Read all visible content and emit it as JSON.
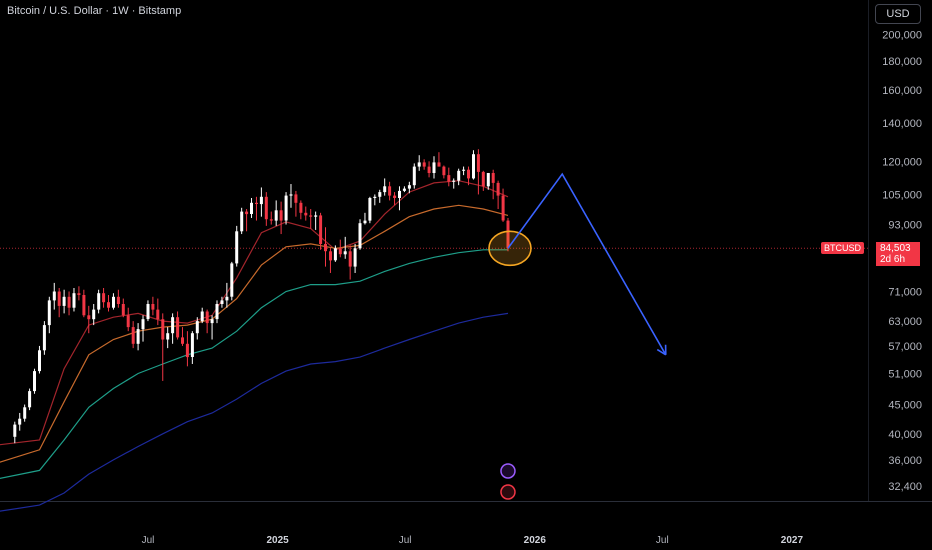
{
  "header": {
    "title": "Bitcoin / U.S. Dollar · 1W · Bitstamp",
    "currency_button": "USD"
  },
  "price_tag": {
    "symbol": "BTCUSD",
    "price": "84,503",
    "countdown": "2d 6h"
  },
  "colors": {
    "up": "#ffffff",
    "down": "#f23645",
    "ma_red": "#a3252c",
    "ma_orange": "#c76a2c",
    "ma_teal": "#1e9e89",
    "ma_navy": "#1d2a9c",
    "arrow": "#3a63ff",
    "highlight": "#f5a623"
  },
  "chart_data": {
    "type": "candlestick",
    "scale": "log",
    "y_ticks": [
      200000,
      180000,
      160000,
      140000,
      120000,
      105000,
      93000,
      71000,
      63000,
      57000,
      51000,
      45000,
      40000,
      36000,
      32400
    ],
    "y_tick_labels": [
      "200,000",
      "180,000",
      "160,000",
      "140,000",
      "120,000",
      "105,000",
      "93,000",
      "71,000",
      "63,000",
      "57,000",
      "51,000",
      "45,000",
      "40,000",
      "36,000",
      "32,400"
    ],
    "x_ticks": [
      {
        "label": "Jul",
        "date": "2024-07-01",
        "bold": false
      },
      {
        "label": "2025",
        "date": "2025-01-01",
        "bold": true
      },
      {
        "label": "Jul",
        "date": "2025-07-01",
        "bold": false
      },
      {
        "label": "2026",
        "date": "2026-01-01",
        "bold": true
      },
      {
        "label": "Jul",
        "date": "2026-07-01",
        "bold": false
      },
      {
        "label": "2027",
        "date": "2027-01-01",
        "bold": true
      }
    ],
    "x_range": [
      "2023-12-04",
      "2027-04-19"
    ],
    "y_range": [
      30500,
      230000
    ],
    "candles": [
      [
        39500,
        42000,
        38500,
        41500
      ],
      [
        41500,
        43500,
        40500,
        42500
      ],
      [
        42500,
        45000,
        42000,
        44500
      ],
      [
        44500,
        48000,
        44000,
        47500
      ],
      [
        47500,
        52000,
        47000,
        51500
      ],
      [
        51500,
        57000,
        51000,
        56000
      ],
      [
        56000,
        63000,
        55000,
        62000
      ],
      [
        62000,
        69500,
        60000,
        68500
      ],
      [
        68500,
        73500,
        66000,
        71000
      ],
      [
        71000,
        72000,
        64000,
        67000
      ],
      [
        67000,
        71500,
        65000,
        69500
      ],
      [
        69500,
        71000,
        64500,
        66500
      ],
      [
        66500,
        72000,
        65500,
        70500
      ],
      [
        70500,
        72500,
        68500,
        70000
      ],
      [
        70000,
        71500,
        64000,
        64500
      ],
      [
        64500,
        67000,
        60000,
        63500
      ],
      [
        63500,
        67500,
        62000,
        66000
      ],
      [
        66000,
        71500,
        65000,
        70500
      ],
      [
        70500,
        72000,
        66500,
        68000
      ],
      [
        68000,
        70000,
        65500,
        66500
      ],
      [
        66500,
        70500,
        66000,
        69500
      ],
      [
        69500,
        71500,
        66500,
        67500
      ],
      [
        67500,
        69000,
        64000,
        64500
      ],
      [
        64500,
        66500,
        60500,
        61500
      ],
      [
        61500,
        63000,
        56500,
        57500
      ],
      [
        57500,
        62500,
        56000,
        61000
      ],
      [
        61000,
        64500,
        58000,
        63500
      ],
      [
        63500,
        68500,
        63000,
        67500
      ],
      [
        67500,
        69500,
        64500,
        66000
      ],
      [
        66000,
        69000,
        62000,
        63500
      ],
      [
        63500,
        65000,
        49500,
        58500
      ],
      [
        58500,
        61500,
        56500,
        60000
      ],
      [
        60000,
        65000,
        57500,
        64000
      ],
      [
        64000,
        65500,
        58500,
        59000
      ],
      [
        59000,
        61500,
        57000,
        57500
      ],
      [
        57500,
        60500,
        52500,
        54500
      ],
      [
        54500,
        60500,
        53000,
        60000
      ],
      [
        60000,
        64000,
        58500,
        63000
      ],
      [
        63000,
        66500,
        62500,
        65500
      ],
      [
        65500,
        66000,
        60000,
        62500
      ],
      [
        62500,
        64500,
        58500,
        63500
      ],
      [
        63500,
        68500,
        62500,
        67500
      ],
      [
        67500,
        69500,
        66500,
        68500
      ],
      [
        68500,
        73500,
        66500,
        69500
      ],
      [
        69500,
        80000,
        68500,
        79500
      ],
      [
        79500,
        92500,
        78500,
        90500
      ],
      [
        90500,
        99500,
        89500,
        98000
      ],
      [
        98000,
        99000,
        90500,
        97000
      ],
      [
        97000,
        103500,
        95500,
        101500
      ],
      [
        101500,
        104000,
        94500,
        101000
      ],
      [
        101000,
        108000,
        96000,
        104000
      ],
      [
        104000,
        106000,
        92500,
        95000
      ],
      [
        95000,
        98000,
        93000,
        94500
      ],
      [
        94500,
        102500,
        92500,
        98500
      ],
      [
        98500,
        102000,
        89500,
        94500
      ],
      [
        94500,
        106000,
        93000,
        104500
      ],
      [
        104500,
        109500,
        99500,
        105000
      ],
      [
        105000,
        106500,
        96000,
        101500
      ],
      [
        101500,
        102500,
        95000,
        97500
      ],
      [
        97500,
        100000,
        94500,
        96500
      ],
      [
        96500,
        99000,
        91500,
        96000
      ],
      [
        96000,
        98000,
        91000,
        96500
      ],
      [
        96500,
        97500,
        84000,
        86000
      ],
      [
        86000,
        92000,
        78500,
        83500
      ],
      [
        83500,
        84500,
        76500,
        80500
      ],
      [
        80500,
        85500,
        80000,
        84500
      ],
      [
        84500,
        87500,
        81500,
        82500
      ],
      [
        82500,
        88500,
        81000,
        83500
      ],
      [
        83500,
        85500,
        74500,
        78500
      ],
      [
        78500,
        86000,
        76500,
        84500
      ],
      [
        84500,
        95000,
        84000,
        93500
      ],
      [
        93500,
        97500,
        93000,
        94500
      ],
      [
        94500,
        104000,
        93500,
        103500
      ],
      [
        103500,
        105000,
        100500,
        104000
      ],
      [
        104000,
        107000,
        101500,
        106000
      ],
      [
        106000,
        112000,
        104500,
        108500
      ],
      [
        108500,
        110500,
        102500,
        104500
      ],
      [
        104500,
        106000,
        100500,
        103500
      ],
      [
        103500,
        108500,
        98500,
        106500
      ],
      [
        106500,
        108500,
        106000,
        107500
      ],
      [
        107500,
        110500,
        105500,
        109000
      ],
      [
        109000,
        119000,
        107500,
        117500
      ],
      [
        117500,
        123000,
        115500,
        119500
      ],
      [
        119500,
        121000,
        116000,
        117500
      ],
      [
        117500,
        120000,
        112500,
        114500
      ],
      [
        114500,
        122500,
        112000,
        119500
      ],
      [
        119500,
        124500,
        117500,
        117500
      ],
      [
        117500,
        118000,
        112000,
        113500
      ],
      [
        113500,
        117000,
        108500,
        110500
      ],
      [
        110500,
        112000,
        107500,
        111000
      ],
      [
        111000,
        116500,
        109000,
        115500
      ],
      [
        115500,
        117500,
        113500,
        116000
      ],
      [
        116000,
        117500,
        109000,
        112000
      ],
      [
        112000,
        125500,
        111500,
        123500
      ],
      [
        123500,
        126000,
        105000,
        115000
      ],
      [
        115000,
        115500,
        106500,
        108500
      ],
      [
        108500,
        114500,
        107000,
        114500
      ],
      [
        114500,
        116000,
        103000,
        110000
      ],
      [
        110000,
        111000,
        99000,
        104500
      ],
      [
        104500,
        107500,
        94000,
        94500
      ],
      [
        94500,
        95500,
        83500,
        84503
      ]
    ],
    "moving_averages": [
      {
        "color": "#a3252c",
        "start": 38000,
        "points": [
          39000,
          52000,
          62000,
          64000,
          65000,
          63000,
          62500,
          64500,
          75000,
          90000,
          94000,
          91500,
          84000,
          87000,
          97000,
          106000,
          110000,
          111000,
          108500,
          104000
        ]
      },
      {
        "color": "#c76a2c",
        "start": 35000,
        "points": [
          37500,
          45500,
          55000,
          58500,
          60500,
          61500,
          62000,
          63500,
          69000,
          79000,
          85000,
          86000,
          84500,
          85500,
          90500,
          96000,
          99000,
          100500,
          99000,
          96500
        ]
      },
      {
        "color": "#1e9e89",
        "start": 33000,
        "points": [
          34500,
          39000,
          44500,
          48000,
          51000,
          53000,
          55000,
          56500,
          60500,
          66500,
          71000,
          73000,
          73000,
          74000,
          77000,
          79500,
          81500,
          83000,
          84000,
          84000
        ]
      },
      {
        "color": "#1d2a9c",
        "start": 29000,
        "points": [
          30000,
          31500,
          34000,
          36000,
          38000,
          40000,
          42000,
          43500,
          46000,
          49000,
          51500,
          53000,
          53500,
          54500,
          56500,
          58500,
          60500,
          62500,
          64000,
          65000
        ]
      }
    ],
    "forecast_path": [
      {
        "date": "2025-11-24",
        "price": 84503
      },
      {
        "date": "2026-02-09",
        "price": 114000
      },
      {
        "date": "2026-07-06",
        "price": 55000
      }
    ],
    "highlight_date": "2025-11-24",
    "highlight_price": 84503
  }
}
